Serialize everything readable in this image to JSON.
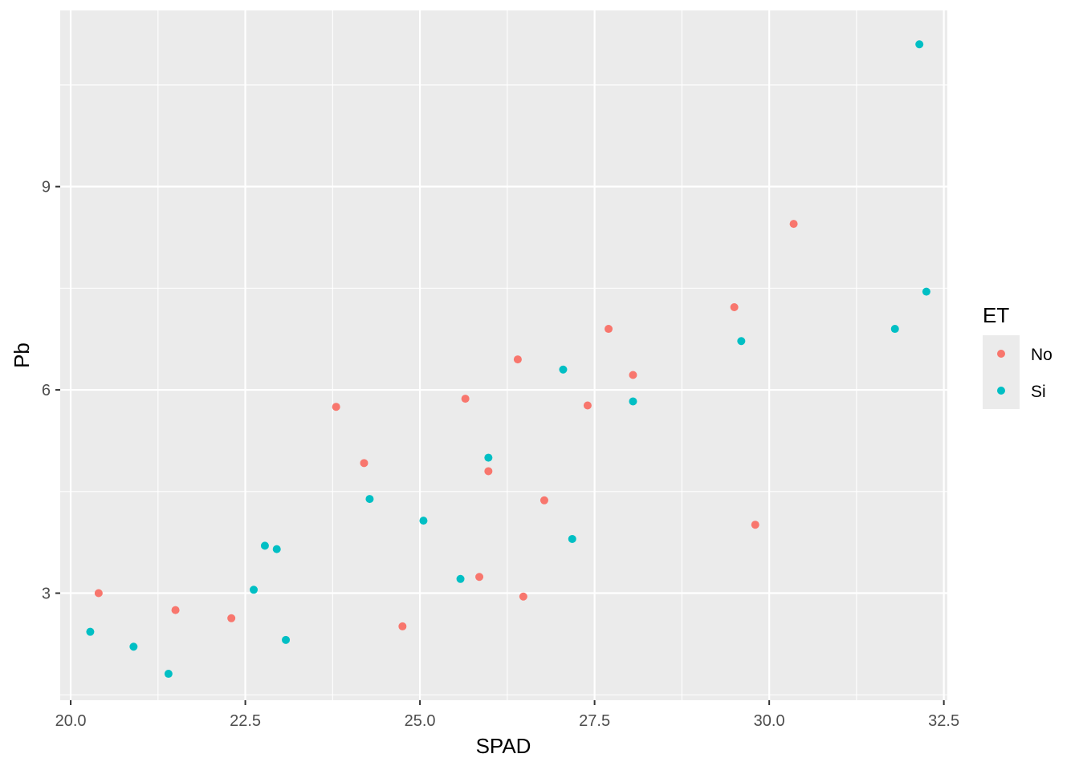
{
  "chart_data": {
    "type": "scatter",
    "xlabel": "SPAD",
    "ylabel": "Pb",
    "xlim": [
      19.85,
      32.55
    ],
    "ylim": [
      1.42,
      11.6
    ],
    "x_ticks": [
      20.0,
      22.5,
      25.0,
      27.5,
      30.0,
      32.5
    ],
    "x_tick_labels": [
      "20.0",
      "22.5",
      "25.0",
      "27.5",
      "30.0",
      "32.5"
    ],
    "y_ticks": [
      3,
      6,
      9
    ],
    "y_tick_labels": [
      "3",
      "6",
      "9"
    ],
    "grid": true,
    "legend": {
      "title": "ET",
      "position": "right"
    },
    "series": [
      {
        "name": "No",
        "color": "#F8766D",
        "points": [
          [
            20.4,
            3.0
          ],
          [
            21.5,
            2.75
          ],
          [
            22.3,
            2.63
          ],
          [
            23.8,
            5.75
          ],
          [
            24.2,
            4.92
          ],
          [
            24.75,
            2.51
          ],
          [
            25.65,
            5.87
          ],
          [
            25.85,
            3.24
          ],
          [
            25.98,
            4.8
          ],
          [
            26.4,
            6.45
          ],
          [
            26.48,
            2.95
          ],
          [
            26.78,
            4.37
          ],
          [
            27.4,
            5.77
          ],
          [
            27.7,
            6.9
          ],
          [
            28.05,
            6.22
          ],
          [
            29.5,
            7.22
          ],
          [
            29.8,
            4.01
          ],
          [
            30.35,
            8.45
          ]
        ]
      },
      {
        "name": "Si",
        "color": "#00BFC4",
        "points": [
          [
            20.28,
            2.43
          ],
          [
            20.9,
            2.21
          ],
          [
            21.4,
            1.81
          ],
          [
            22.62,
            3.05
          ],
          [
            22.78,
            3.7
          ],
          [
            22.95,
            3.65
          ],
          [
            23.08,
            2.31
          ],
          [
            24.28,
            4.39
          ],
          [
            25.05,
            4.07
          ],
          [
            25.58,
            3.21
          ],
          [
            25.98,
            5.0
          ],
          [
            27.05,
            6.3
          ],
          [
            27.18,
            3.8
          ],
          [
            28.05,
            5.83
          ],
          [
            29.6,
            6.72
          ],
          [
            31.8,
            6.9
          ],
          [
            32.15,
            11.1
          ],
          [
            32.25,
            7.45
          ]
        ]
      }
    ]
  }
}
